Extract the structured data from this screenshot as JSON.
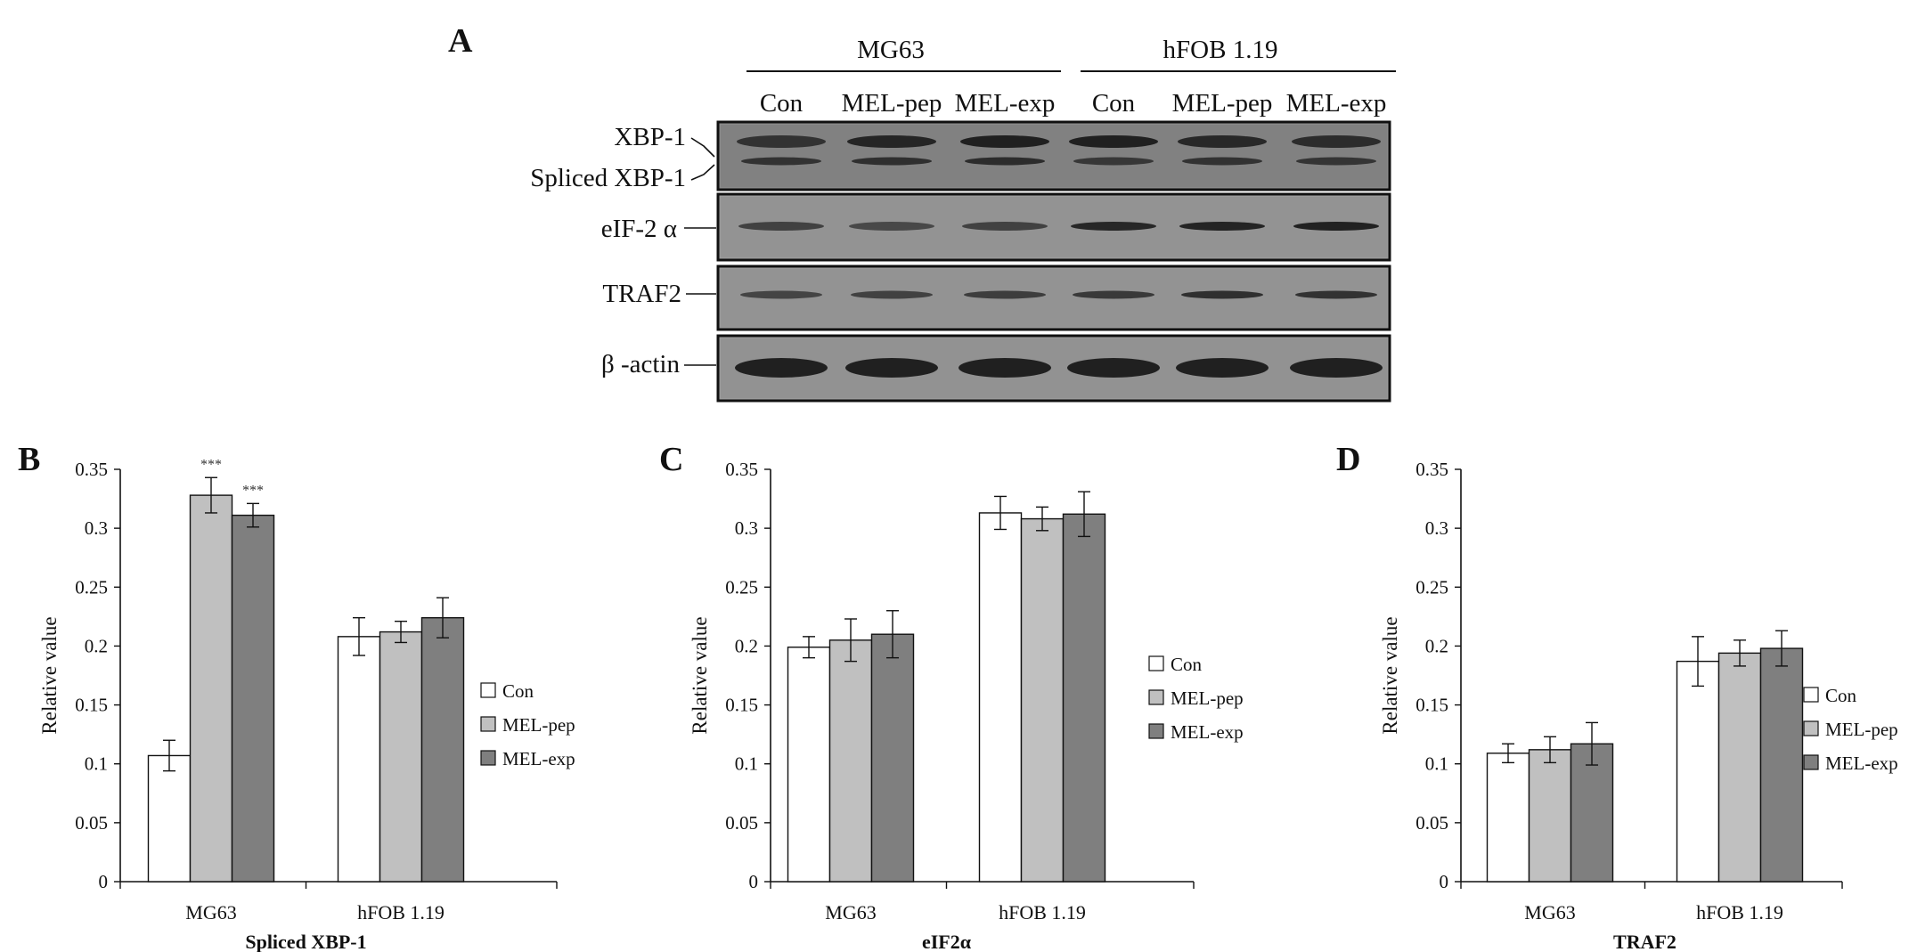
{
  "panels": {
    "A": "A",
    "B": "B",
    "C": "C",
    "D": "D"
  },
  "blot": {
    "groups": [
      "MG63",
      "hFOB 1.19"
    ],
    "lanes": [
      "Con",
      "MEL-pep",
      "MEL-exp",
      "Con",
      "MEL-pep",
      "MEL-exp"
    ],
    "rows": [
      {
        "label": "XBP-1",
        "label2": "Spliced XBP-1"
      },
      {
        "label": "eIF-2 α"
      },
      {
        "label": "TRAF2"
      },
      {
        "label": "β -actin"
      }
    ],
    "colors": {
      "band": "#1a1a1a",
      "membrane": "#6f6f6f",
      "membrane_light": "#9a9a9a"
    }
  },
  "legend": [
    "Con",
    "MEL-pep",
    "MEL-exp"
  ],
  "series_colors": [
    "#ffffff",
    "#c0c0c0",
    "#7f7f7f"
  ],
  "chart_data": [
    {
      "type": "bar",
      "categories": [
        "MG63",
        "hFOB 1.19"
      ],
      "series": [
        {
          "name": "Con",
          "values": [
            0.107,
            0.208
          ],
          "errors": [
            0.013,
            0.016
          ]
        },
        {
          "name": "MEL-pep",
          "values": [
            0.328,
            0.212
          ],
          "errors": [
            0.015,
            0.009
          ]
        },
        {
          "name": "MEL-exp",
          "values": [
            0.311,
            0.224
          ],
          "errors": [
            0.01,
            0.017
          ]
        }
      ],
      "annotations": [
        {
          "series": "MEL-pep",
          "category": "MG63",
          "text": "***"
        },
        {
          "series": "MEL-exp",
          "category": "MG63",
          "text": "***"
        }
      ],
      "xlabel": "Spliced XBP-1",
      "ylabel": "Relative value",
      "ylim": [
        0,
        0.35
      ],
      "yticks": [
        "0",
        "0.05",
        "0.1",
        "0.15",
        "0.2",
        "0.25",
        "0.3",
        "0.35"
      ],
      "legend_position": "right",
      "grid": false
    },
    {
      "type": "bar",
      "categories": [
        "MG63",
        "hFOB 1.19"
      ],
      "series": [
        {
          "name": "Con",
          "values": [
            0.199,
            0.313
          ],
          "errors": [
            0.009,
            0.014
          ]
        },
        {
          "name": "MEL-pep",
          "values": [
            0.205,
            0.308
          ],
          "errors": [
            0.018,
            0.01
          ]
        },
        {
          "name": "MEL-exp",
          "values": [
            0.21,
            0.312
          ],
          "errors": [
            0.02,
            0.019
          ]
        }
      ],
      "annotations": [],
      "xlabel": "eIF2α",
      "ylabel": "Relative value",
      "ylim": [
        0,
        0.35
      ],
      "yticks": [
        "0",
        "0.05",
        "0.1",
        "0.15",
        "0.2",
        "0.25",
        "0.3",
        "0.35"
      ],
      "legend_position": "right",
      "grid": false
    },
    {
      "type": "bar",
      "categories": [
        "MG63",
        "hFOB 1.19"
      ],
      "series": [
        {
          "name": "Con",
          "values": [
            0.109,
            0.187
          ],
          "errors": [
            0.008,
            0.021
          ]
        },
        {
          "name": "MEL-pep",
          "values": [
            0.112,
            0.194
          ],
          "errors": [
            0.011,
            0.011
          ]
        },
        {
          "name": "MEL-exp",
          "values": [
            0.117,
            0.198
          ],
          "errors": [
            0.018,
            0.015
          ]
        }
      ],
      "annotations": [],
      "xlabel": "TRAF2",
      "ylabel": "Relative value",
      "ylim": [
        0,
        0.35
      ],
      "yticks": [
        "0",
        "0.05",
        "0.1",
        "0.15",
        "0.2",
        "0.25",
        "0.3",
        "0.35"
      ],
      "legend_position": "right",
      "grid": false
    }
  ]
}
